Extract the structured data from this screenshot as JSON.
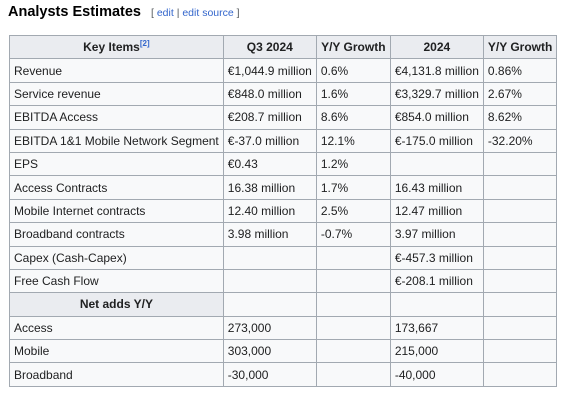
{
  "header": {
    "title": "Analysts Estimates",
    "bracket_open": "[",
    "edit_label": "edit",
    "separator": "|",
    "edit_source_label": "edit source",
    "bracket_close": "]"
  },
  "table": {
    "columns": [
      {
        "label": "Key Items",
        "ref": "[2]"
      },
      {
        "label": "Q3 2024"
      },
      {
        "label": "Y/Y Growth"
      },
      {
        "label": "2024"
      },
      {
        "label": "Y/Y Growth"
      }
    ],
    "rows": [
      [
        "Revenue",
        "€1,044.9 million",
        "0.6%",
        "€4,131.8 million",
        "0.86%"
      ],
      [
        "Service revenue",
        "€848.0 million",
        "1.6%",
        "€3,329.7 million",
        "2.67%"
      ],
      [
        "EBITDA Access",
        "€208.7 million",
        "8.6%",
        "€854.0 million",
        "8.62%"
      ],
      [
        "EBITDA 1&1 Mobile Network Segment",
        "€-37.0 million",
        "12.1%",
        "€-175.0 million",
        "-32.20%"
      ],
      [
        "EPS",
        "€0.43",
        "1.2%",
        "",
        ""
      ],
      [
        "Access Contracts",
        "16.38 million",
        "1.7%",
        "16.43 million",
        ""
      ],
      [
        "Mobile Internet contracts",
        "12.40 million",
        "2.5%",
        "12.47 million",
        ""
      ],
      [
        "Broadband contracts",
        "3.98 million",
        "-0.7%",
        "3.97 million",
        ""
      ],
      [
        "Capex (Cash-Capex)",
        "",
        "",
        "€-457.3 million",
        ""
      ],
      [
        "Free Cash Flow",
        "",
        "",
        "€-208.1 million",
        ""
      ]
    ],
    "subheader": "Net adds Y/Y",
    "net_adds_rows": [
      [
        "Access",
        "273,000",
        "",
        "173,667",
        ""
      ],
      [
        "Mobile",
        "303,000",
        "",
        "215,000",
        ""
      ],
      [
        "Broadband",
        "-30,000",
        "",
        "-40,000",
        ""
      ]
    ]
  }
}
